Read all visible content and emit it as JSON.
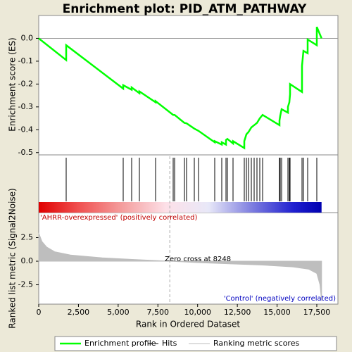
{
  "chart_data": [
    {
      "type": "line",
      "title": "Enrichment plot: PID_ATM_PATHWAY",
      "y_label": "Enrichment score (ES)",
      "xlim": [
        0,
        18830
      ],
      "ylim": [
        -0.51,
        0.1
      ],
      "yticks": [
        {
          "value": 0,
          "label": "0.0"
        },
        -0.1,
        -0.2,
        -0.3,
        -0.4,
        -0.5
      ],
      "grid": false,
      "series": [
        {
          "name": "Enrichment profile",
          "color": "#00ff00",
          "x": [
            0,
            1728,
            1728,
            5317,
            5317,
            5848,
            5848,
            6336,
            6336,
            7355,
            7355,
            8463,
            8551,
            9171,
            9304,
            9792,
            10058,
            11077,
            11077,
            11520,
            11520,
            11786,
            11786,
            11874,
            12229,
            12229,
            12937,
            12937,
            13070,
            13203,
            13380,
            13558,
            13735,
            13912,
            14090,
            15153,
            15153,
            15197,
            15286,
            15685,
            15685,
            15774,
            15818,
            15818,
            16571,
            16571,
            16660,
            16926,
            16926,
            17501,
            17501,
            17800
          ],
          "values": [
            0,
            -0.095,
            -0.03,
            -0.22,
            -0.205,
            -0.225,
            -0.215,
            -0.24,
            -0.232,
            -0.28,
            -0.275,
            -0.335,
            -0.335,
            -0.37,
            -0.372,
            -0.395,
            -0.405,
            -0.455,
            -0.45,
            -0.465,
            -0.455,
            -0.465,
            -0.445,
            -0.44,
            -0.46,
            -0.45,
            -0.48,
            -0.45,
            -0.42,
            -0.41,
            -0.39,
            -0.38,
            -0.37,
            -0.35,
            -0.335,
            -0.38,
            -0.36,
            -0.34,
            -0.31,
            -0.325,
            -0.3,
            -0.28,
            -0.245,
            -0.2,
            -0.235,
            -0.12,
            -0.055,
            -0.065,
            -0.005,
            -0.03,
            0.05,
            0
          ]
        }
      ],
      "hits": {
        "name": "Hits",
        "color": "#000000",
        "x": [
          1728,
          5317,
          5848,
          6336,
          7355,
          8463,
          8551,
          9171,
          9304,
          9792,
          10058,
          11077,
          11520,
          11786,
          11874,
          12229,
          12937,
          13070,
          13203,
          13380,
          13558,
          13735,
          13912,
          14090,
          15153,
          15197,
          15286,
          15685,
          15774,
          15818,
          16571,
          16660,
          16926,
          17501
        ]
      }
    },
    {
      "type": "area",
      "x_label": "Rank in Ordered Dataset",
      "y_label": "Ranked list metric (Signal2Noise)",
      "xlim": [
        0,
        18830
      ],
      "ylim": [
        -4.55,
        5.15
      ],
      "xticks": [
        0,
        {
          "value": 2500,
          "label": "2,500"
        },
        {
          "value": 5000,
          "label": "5,000"
        },
        {
          "value": 7500,
          "label": "7,500"
        },
        {
          "value": 10000,
          "label": "10,000"
        },
        {
          "value": 12500,
          "label": "12,500"
        },
        {
          "value": 15000,
          "label": "15,000"
        },
        {
          "value": 17500,
          "label": "17,500"
        }
      ],
      "yticks": [
        2.5,
        {
          "value": 0,
          "label": "0.0"
        },
        -2.5
      ],
      "zero_cross": 8248,
      "annotation": "Zero cross at 8248",
      "positive_label": "'AHRR-overexpressed' (positively correlated)",
      "negative_label": "'Control' (negatively correlated)",
      "series": [
        {
          "name": "Ranking metric scores",
          "color": "#bebebe",
          "x": [
            0,
            200,
            500,
            1000,
            2000,
            4000,
            6000,
            8248,
            10000,
            12000,
            14000,
            16000,
            17000,
            17500,
            17700,
            17800
          ],
          "values": [
            3.0,
            2.1,
            1.5,
            1.0,
            0.65,
            0.35,
            0.18,
            0,
            -0.15,
            -0.28,
            -0.4,
            -0.6,
            -0.85,
            -1.3,
            -2.5,
            -4.2
          ]
        }
      ]
    }
  ]
}
